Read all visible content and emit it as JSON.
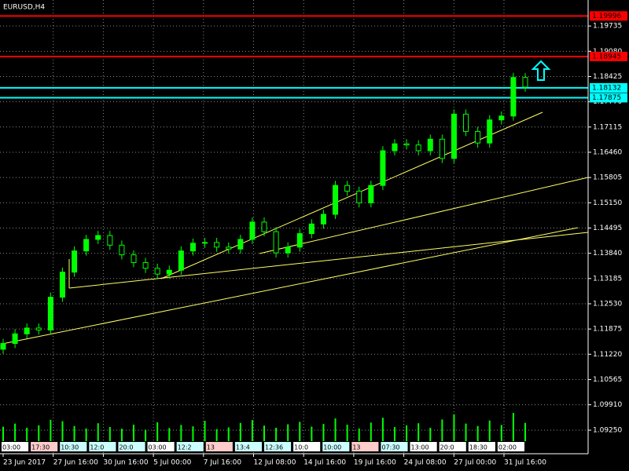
{
  "chart_data": {
    "type": "candlestick",
    "title": "EURUSD,H4",
    "open": [
      1.1135,
      1.115,
      1.1175,
      1.119,
      1.1185,
      1.127,
      1.1335,
      1.139,
      1.142,
      1.143,
      1.1405,
      1.138,
      1.136,
      1.1345,
      1.133,
      1.134,
      1.139,
      1.141,
      1.1412,
      1.14,
      1.1395,
      1.142,
      1.1465,
      1.144,
      1.1385,
      1.14,
      1.1435,
      1.146,
      1.1485,
      1.156,
      1.1545,
      1.1515,
      1.156,
      1.165,
      1.1668,
      1.1665,
      1.165,
      1.168,
      1.163,
      1.1745,
      1.17,
      1.167,
      1.173,
      1.174,
      1.184
    ],
    "high": [
      1.1162,
      1.1187,
      1.1202,
      1.1202,
      1.1282,
      1.1347,
      1.1402,
      1.1432,
      1.1442,
      1.1442,
      1.1417,
      1.1392,
      1.1372,
      1.1357,
      1.1352,
      1.1402,
      1.1422,
      1.1424,
      1.1424,
      1.1412,
      1.1432,
      1.1477,
      1.1477,
      1.1452,
      1.1412,
      1.1447,
      1.1472,
      1.1497,
      1.1572,
      1.1572,
      1.1557,
      1.1572,
      1.1662,
      1.168,
      1.168,
      1.1677,
      1.1692,
      1.1692,
      1.1757,
      1.1757,
      1.1712,
      1.1742,
      1.1752,
      1.1852,
      1.1852
    ],
    "low": [
      1.1123,
      1.1138,
      1.1163,
      1.1173,
      1.1173,
      1.1258,
      1.1323,
      1.1378,
      1.1408,
      1.1393,
      1.1368,
      1.1348,
      1.1333,
      1.1318,
      1.1318,
      1.1328,
      1.1378,
      1.1398,
      1.1388,
      1.1383,
      1.1383,
      1.1408,
      1.1428,
      1.1373,
      1.1373,
      1.1388,
      1.1423,
      1.1448,
      1.1473,
      1.1533,
      1.1503,
      1.1503,
      1.1548,
      1.1638,
      1.1653,
      1.1638,
      1.1638,
      1.1618,
      1.1618,
      1.1688,
      1.1658,
      1.1658,
      1.1718,
      1.1728,
      1.1803
    ],
    "close": [
      1.115,
      1.1175,
      1.119,
      1.1185,
      1.127,
      1.1335,
      1.139,
      1.142,
      1.143,
      1.1405,
      1.138,
      1.136,
      1.1345,
      1.133,
      1.134,
      1.139,
      1.141,
      1.1412,
      1.14,
      1.1395,
      1.142,
      1.1465,
      1.144,
      1.1385,
      1.14,
      1.1435,
      1.146,
      1.1485,
      1.156,
      1.1545,
      1.1515,
      1.156,
      1.165,
      1.1668,
      1.1665,
      1.165,
      1.168,
      1.163,
      1.1745,
      1.17,
      1.167,
      1.173,
      1.174,
      1.184,
      1.1815
    ],
    "volumes": [
      4200,
      5100,
      3900,
      4600,
      6200,
      5800,
      4400,
      3700,
      5200,
      4100,
      3600,
      4800,
      3300,
      5500,
      3800,
      4700,
      4300,
      5900,
      3500,
      4000,
      5300,
      6100,
      4500,
      3900,
      4900,
      5600,
      4200,
      5000,
      6600,
      4800,
      3700,
      5400,
      6800,
      4100,
      4600,
      5200,
      3900,
      6300,
      7800,
      5100,
      4400,
      6000,
      4700,
      8200,
      5300
    ],
    "color": "#00ff00",
    "ylim": [
      1.0864,
      1.2041
    ],
    "yticks": [
      {
        "value": 1.19735,
        "label": "1.19735"
      },
      {
        "value": 1.1908,
        "label": "1.19080"
      },
      {
        "value": 1.18425,
        "label": "1.18425"
      },
      {
        "value": 1.1777,
        "label": "1.17770"
      },
      {
        "value": 1.17115,
        "label": "1.17115"
      },
      {
        "value": 1.1646,
        "label": "1.16460"
      },
      {
        "value": 1.15805,
        "label": "1.15805"
      },
      {
        "value": 1.1515,
        "label": "1.15150"
      },
      {
        "value": 1.14495,
        "label": "1.14495"
      },
      {
        "value": 1.1384,
        "label": "1.13840"
      },
      {
        "value": 1.13185,
        "label": "1.13185"
      },
      {
        "value": 1.1253,
        "label": "1.12530"
      },
      {
        "value": 1.11875,
        "label": "1.11875"
      },
      {
        "value": 1.1122,
        "label": "1.11220"
      },
      {
        "value": 1.10565,
        "label": "1.10565"
      },
      {
        "value": 1.0991,
        "label": "1.09910"
      },
      {
        "value": 1.0925,
        "label": "1.09250"
      }
    ],
    "xlabels": [
      "23 Jun 2017",
      "27 Jun 16:00",
      "30 Jun 16:00",
      "5 Jul 00:00",
      "7 Jul 16:00",
      "12 Jul 08:00",
      "14 Jul 16:00",
      "19 Jul 16:00",
      "24 Jul 08:00",
      "27 Jul 00:00",
      "31 Jul 16:00"
    ],
    "time_tags": [
      "03:00",
      "17:30",
      "10:30",
      "12:0",
      "20:0",
      "03:00",
      "12:2",
      "13",
      "13:4",
      "12:36",
      "10:0",
      "10:00",
      "13",
      "07:30",
      "13:00",
      "20:0",
      "18:30",
      "02:00"
    ],
    "levels": [
      {
        "value": 1.19996,
        "color": "#ff0000"
      },
      {
        "value": 1.18945,
        "color": "#ff0000"
      },
      {
        "value": 1.18132,
        "color": "#00ffff"
      },
      {
        "value": 1.17875,
        "color": "#00ffff"
      }
    ],
    "grid": true
  }
}
